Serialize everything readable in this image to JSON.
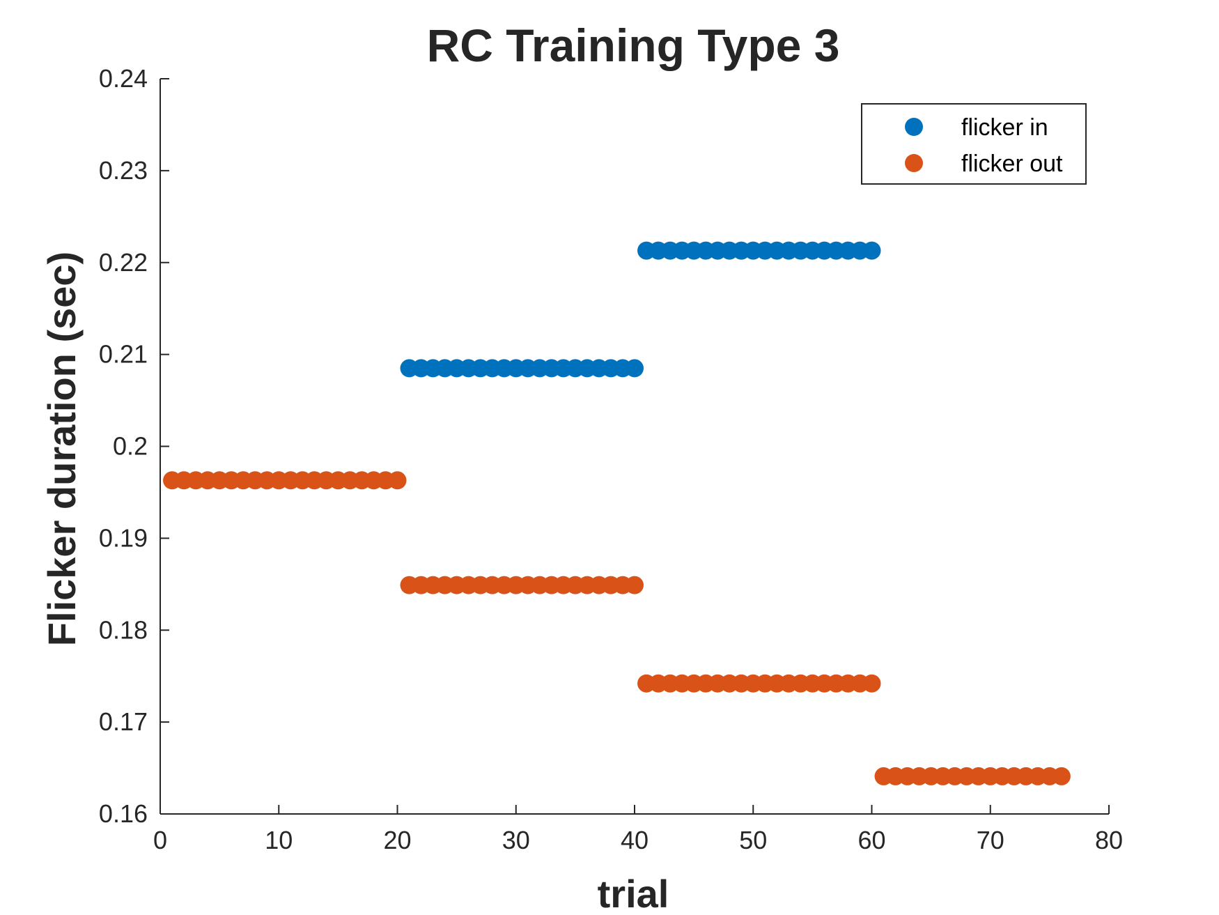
{
  "chart_data": {
    "type": "scatter",
    "title": "RC Training Type 3",
    "xlabel": "trial",
    "ylabel": "Flicker duration (sec)",
    "xlim": [
      0,
      80
    ],
    "ylim": [
      0.16,
      0.24
    ],
    "xticks": [
      0,
      10,
      20,
      30,
      40,
      50,
      60,
      70,
      80
    ],
    "yticks": [
      0.16,
      0.17,
      0.18,
      0.19,
      0.2,
      0.21,
      0.22,
      0.23,
      0.24
    ],
    "xtick_labels": [
      "0",
      "10",
      "20",
      "30",
      "40",
      "50",
      "60",
      "70",
      "80"
    ],
    "ytick_labels": [
      "0.16",
      "0.17",
      "0.18",
      "0.19",
      "0.2",
      "0.21",
      "0.22",
      "0.23",
      "0.24"
    ],
    "grid": false,
    "legend_position": "top-right",
    "series": [
      {
        "name": "flicker in",
        "color": "#0072BD",
        "segments": [
          {
            "x_start": 21,
            "x_end": 40,
            "y": 0.2085
          },
          {
            "x_start": 41,
            "x_end": 60,
            "y": 0.2213
          }
        ]
      },
      {
        "name": "flicker out",
        "color": "#D95319",
        "segments": [
          {
            "x_start": 1,
            "x_end": 20,
            "y": 0.1963
          },
          {
            "x_start": 21,
            "x_end": 40,
            "y": 0.1849
          },
          {
            "x_start": 41,
            "x_end": 60,
            "y": 0.1742
          },
          {
            "x_start": 61,
            "x_end": 76,
            "y": 0.1641
          }
        ]
      }
    ]
  }
}
